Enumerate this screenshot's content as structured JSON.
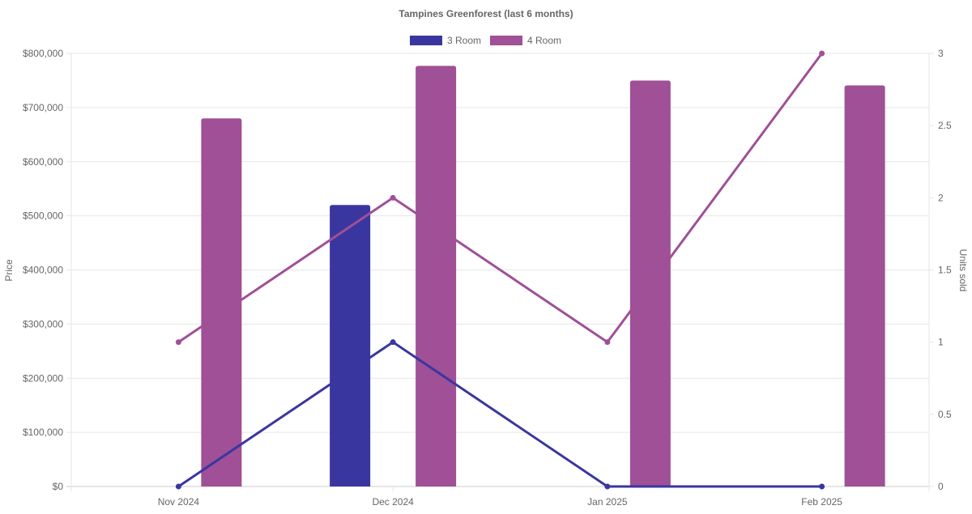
{
  "chart_data": {
    "type": "bar",
    "title": "Tampines Greenforest (last 6 months)",
    "categories": [
      "Nov 2024",
      "Dec 2024",
      "Jan 2025",
      "Feb 2025"
    ],
    "y_left": {
      "label": "Price",
      "range": [
        0,
        800000
      ],
      "ticks": [
        "$0",
        "$100,000",
        "$200,000",
        "$300,000",
        "$400,000",
        "$500,000",
        "$600,000",
        "$700,000",
        "$800,000"
      ]
    },
    "y_right": {
      "label": "Units sold",
      "range": [
        0,
        3
      ],
      "ticks": [
        "0",
        "0.5",
        "1",
        "1.5",
        "2",
        "2.5",
        "3"
      ]
    },
    "legend_position": "top-center",
    "grid": true,
    "series": [
      {
        "name": "3 Room",
        "color": "#3a36a0",
        "bar_values": [
          null,
          520000,
          null,
          null
        ],
        "line_values": [
          0,
          1,
          0,
          0
        ]
      },
      {
        "name": "4 Room",
        "color": "#9f5096",
        "bar_values": [
          680000,
          777000,
          750000,
          741000
        ],
        "line_values": [
          1,
          2,
          1,
          3
        ]
      }
    ]
  }
}
